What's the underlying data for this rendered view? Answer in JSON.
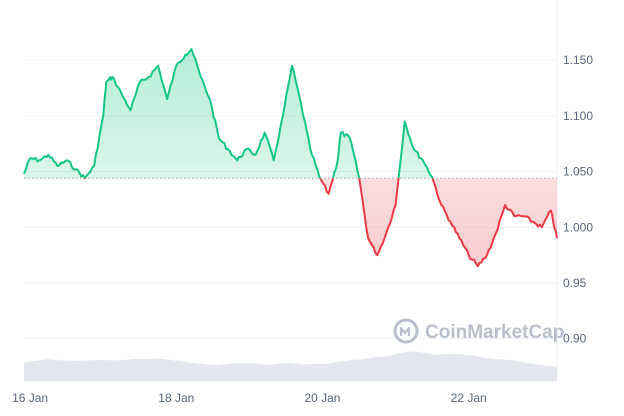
{
  "chart_data": {
    "type": "line",
    "title": "",
    "xlabel": "",
    "ylabel": "",
    "x_ticks": [
      "16 Jan",
      "18 Jan",
      "20 Jan",
      "22 Jan"
    ],
    "y_ticks": [
      0.9,
      0.95,
      1.0,
      1.05,
      1.1,
      1.15
    ],
    "y_tick_labels": [
      "0.90",
      "0.95",
      "1.000",
      "1.050",
      "1.100",
      "1.150"
    ],
    "ylim": [
      0.862,
      1.195
    ],
    "xlim": [
      "2024-01-15T22:00",
      "2024-01-23T05:00"
    ],
    "baseline": 1.044,
    "grid": true,
    "legend": "none",
    "axis_position": "right",
    "colors": {
      "above": "#16c784",
      "below": "#ea3943",
      "fill_above": "#16c784",
      "fill_below": "#ea3943",
      "volume": "#e3e6ec",
      "grid": "#eff2f5",
      "axis_text": "#58667e",
      "baseline": "#9aa0ab"
    },
    "series": [
      {
        "x": [
          "2024-01-15T22:00",
          "2024-01-16T00:00",
          "2024-01-16T03:00",
          "2024-01-16T06:00",
          "2024-01-16T09:00",
          "2024-01-16T12:00",
          "2024-01-16T15:00",
          "2024-01-16T18:00",
          "2024-01-16T21:00",
          "2024-01-17T00:00",
          "2024-01-17T01:00",
          "2024-01-17T03:00",
          "2024-01-17T06:00",
          "2024-01-17T09:00",
          "2024-01-17T12:00",
          "2024-01-17T15:00",
          "2024-01-17T18:00",
          "2024-01-17T21:00",
          "2024-01-18T00:00",
          "2024-01-18T03:00",
          "2024-01-18T05:00",
          "2024-01-18T08:00",
          "2024-01-18T11:00",
          "2024-01-18T14:00",
          "2024-01-18T17:00",
          "2024-01-18T20:00",
          "2024-01-18T23:00",
          "2024-01-19T02:00",
          "2024-01-19T05:00",
          "2024-01-19T08:00",
          "2024-01-19T11:00",
          "2024-01-19T14:00",
          "2024-01-19T17:00",
          "2024-01-19T20:00",
          "2024-01-19T23:00",
          "2024-01-20T02:00",
          "2024-01-20T05:00",
          "2024-01-20T06:00",
          "2024-01-20T09:00",
          "2024-01-20T12:00",
          "2024-01-20T15:00",
          "2024-01-20T18:00",
          "2024-01-20T21:00",
          "2024-01-21T00:00",
          "2024-01-21T03:00",
          "2024-01-21T06:00",
          "2024-01-21T09:00",
          "2024-01-21T12:00",
          "2024-01-21T15:00",
          "2024-01-21T18:00",
          "2024-01-21T21:00",
          "2024-01-22T00:00",
          "2024-01-22T03:00",
          "2024-01-22T06:00",
          "2024-01-22T09:00",
          "2024-01-22T12:00",
          "2024-01-22T15:00",
          "2024-01-22T18:00",
          "2024-01-22T21:00",
          "2024-01-23T00:00",
          "2024-01-23T03:00",
          "2024-01-23T05:00"
        ],
        "values": [
          1.048,
          1.062,
          1.06,
          1.065,
          1.055,
          1.06,
          1.052,
          1.044,
          1.055,
          1.1,
          1.13,
          1.135,
          1.12,
          1.105,
          1.13,
          1.135,
          1.145,
          1.115,
          1.145,
          1.155,
          1.16,
          1.135,
          1.115,
          1.08,
          1.07,
          1.06,
          1.07,
          1.065,
          1.085,
          1.06,
          1.1,
          1.145,
          1.11,
          1.07,
          1.045,
          1.03,
          1.06,
          1.085,
          1.08,
          1.045,
          0.99,
          0.975,
          0.995,
          1.02,
          1.095,
          1.07,
          1.06,
          1.045,
          1.02,
          1.005,
          0.99,
          0.975,
          0.965,
          0.975,
          0.995,
          1.02,
          1.01,
          1.01,
          1.005,
          1.0,
          1.015,
          0.99
        ]
      }
    ],
    "volume": {
      "values": [
        0.55,
        0.6,
        0.65,
        0.62,
        0.58,
        0.6,
        0.63,
        0.6,
        0.58,
        0.62,
        0.65,
        0.63,
        0.6,
        0.58,
        0.55,
        0.5,
        0.48,
        0.5,
        0.52,
        0.5,
        0.48,
        0.52,
        0.55,
        0.5,
        0.48,
        0.5,
        0.55,
        0.6,
        0.65,
        0.7,
        0.75,
        0.8,
        0.85,
        0.82,
        0.78,
        0.8,
        0.78,
        0.75,
        0.7,
        0.65,
        0.6,
        0.55,
        0.5,
        0.45,
        0.42
      ]
    }
  },
  "watermark": {
    "text": "CoinMarketCap",
    "icon": "coinmarketcap-logo-icon"
  }
}
